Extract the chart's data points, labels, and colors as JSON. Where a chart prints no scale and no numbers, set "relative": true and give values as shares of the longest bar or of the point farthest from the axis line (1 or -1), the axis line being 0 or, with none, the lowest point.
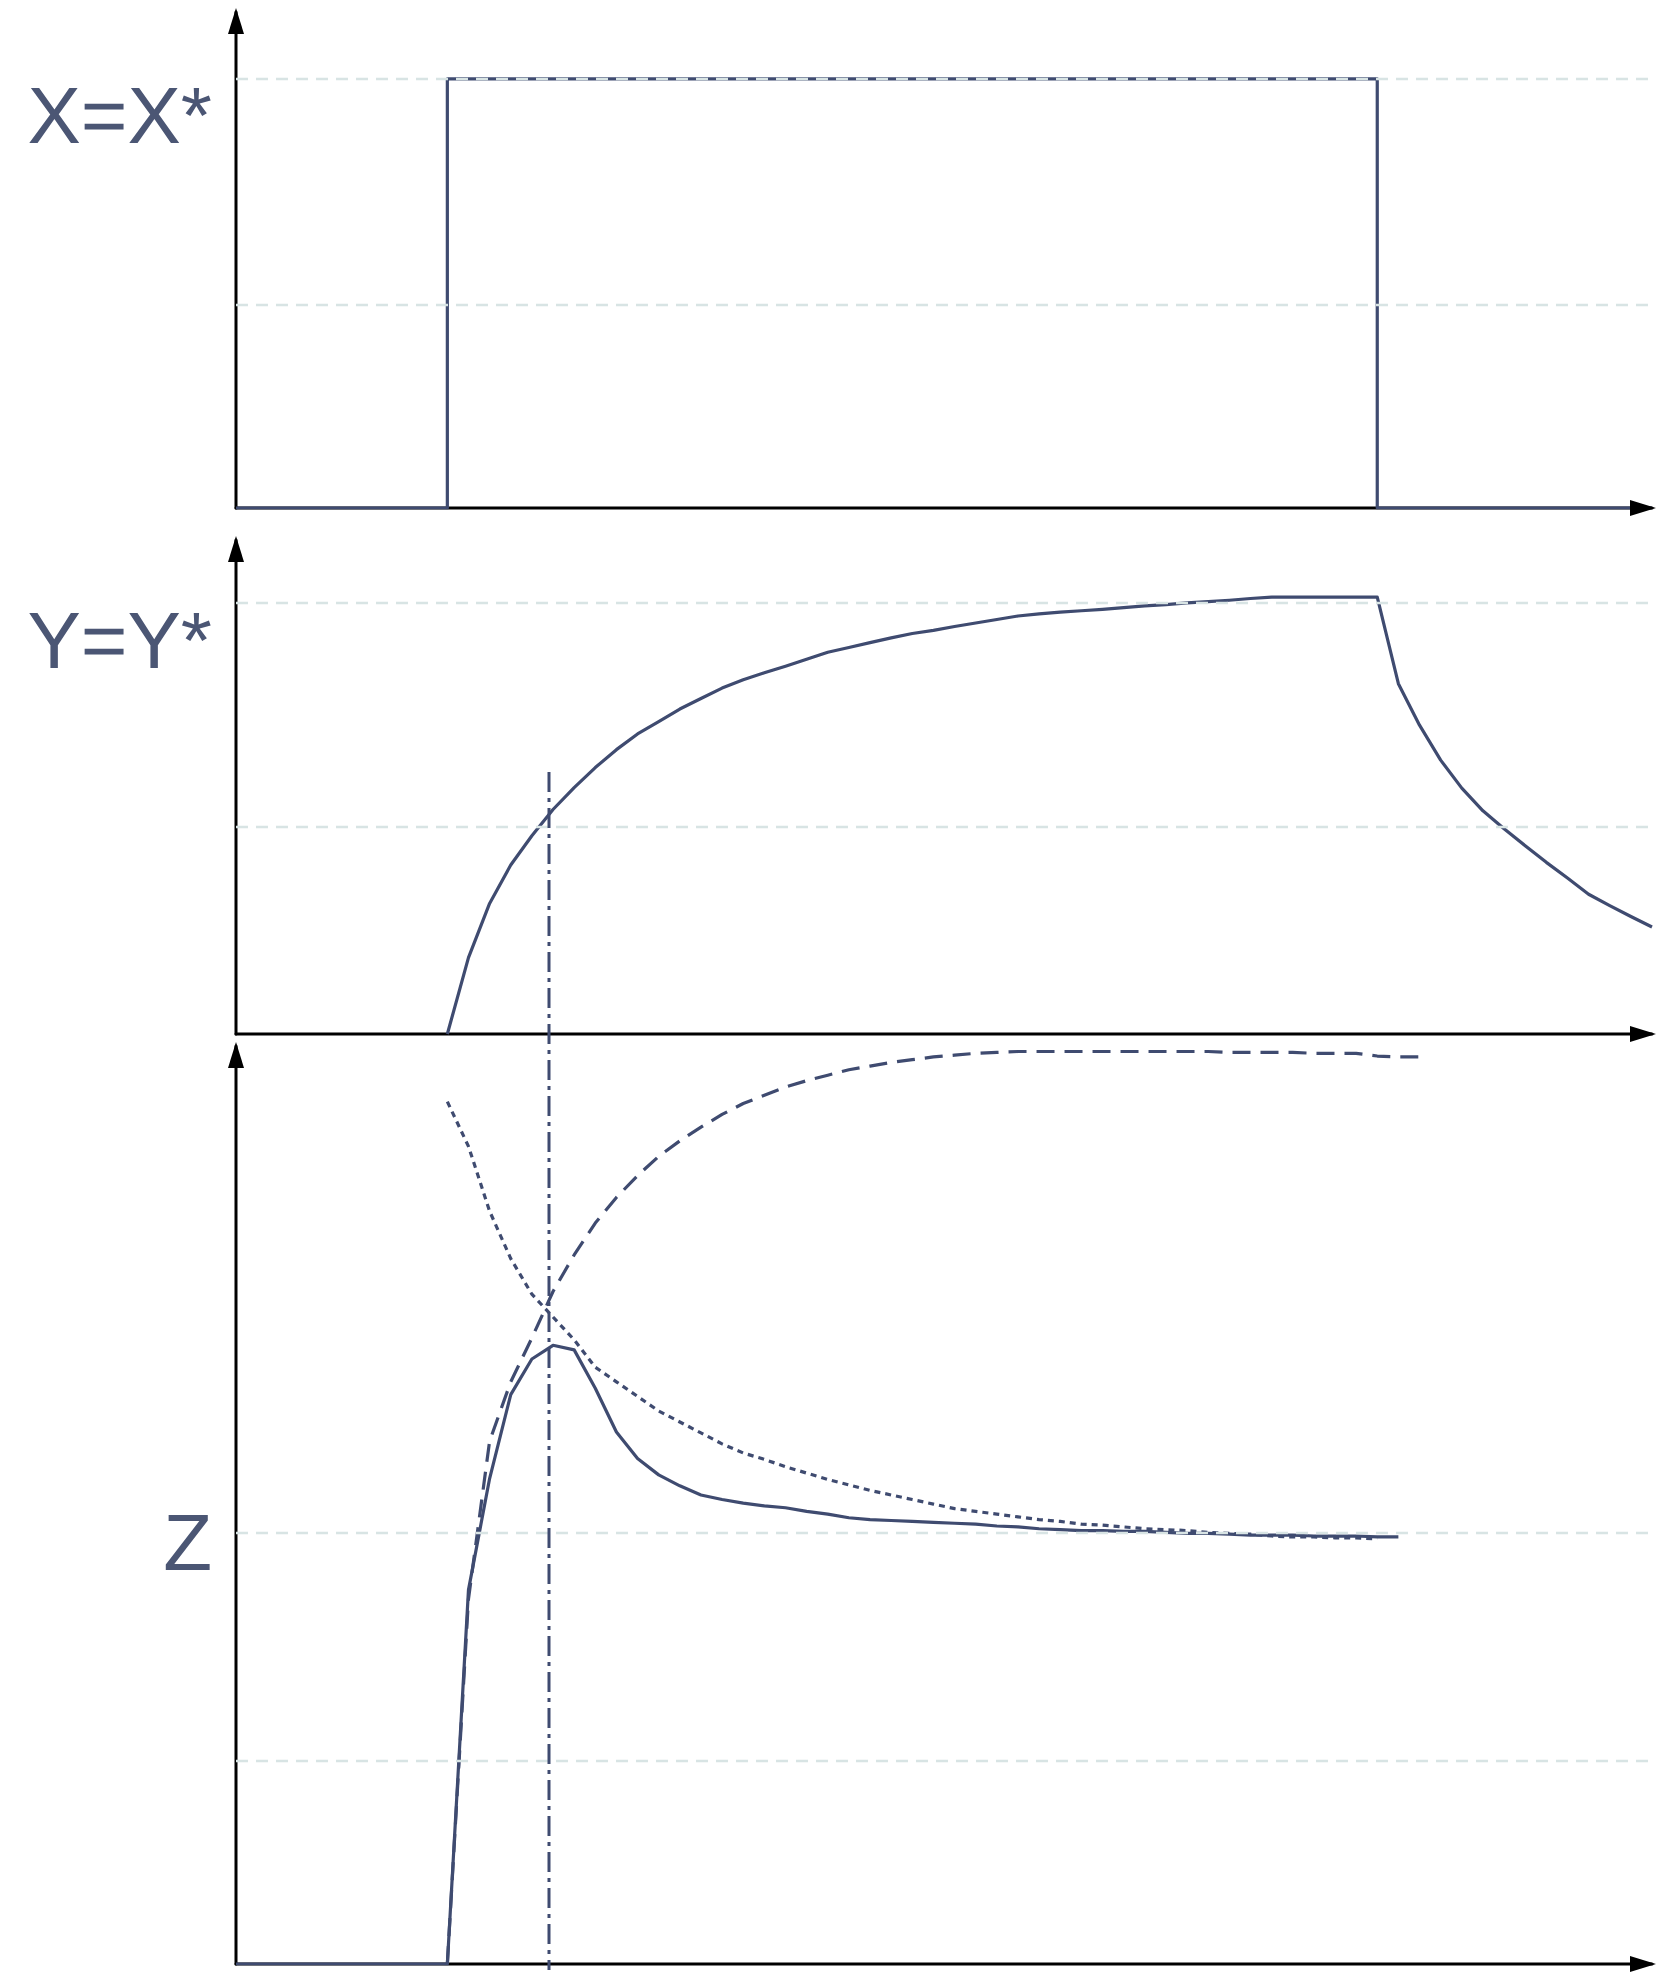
{
  "chart_data": [
    {
      "type": "step",
      "relative": true,
      "marker": "none",
      "categories": [
        null,
        null,
        null,
        null,
        null,
        null,
        null,
        null,
        null,
        null,
        null,
        null,
        null,
        null,
        null,
        null,
        null,
        null,
        null,
        null,
        null,
        null,
        null,
        null,
        null,
        null,
        null,
        null,
        null,
        null,
        null,
        null,
        null,
        null,
        null,
        null,
        null,
        null,
        null,
        null,
        null,
        null,
        null,
        null,
        null,
        null,
        null,
        null,
        null,
        null,
        null,
        null,
        null,
        null,
        null,
        null,
        null,
        null,
        null,
        null,
        null,
        null,
        null,
        null,
        null,
        null,
        null,
        null
      ],
      "series": [
        {
          "color": "#3f4b70",
          "line_style": "solid",
          "values": [
            0,
            0,
            0,
            0,
            0,
            0,
            0,
            0,
            0,
            0,
            1,
            1,
            1,
            1,
            1,
            1,
            1,
            1,
            1,
            1,
            1,
            1,
            1,
            1,
            1,
            1,
            1,
            1,
            1,
            1,
            1,
            1,
            1,
            1,
            1,
            1,
            1,
            1,
            1,
            1,
            1,
            1,
            1,
            1,
            1,
            1,
            1,
            1,
            1,
            1,
            1,
            1,
            1,
            1,
            0,
            0,
            0,
            0,
            0,
            0,
            0,
            0,
            0,
            0,
            0,
            0,
            0,
            0
          ]
        }
      ],
      "ref_lines": [
        {
          "axis": "y",
          "value": 1,
          "label": "X=X*",
          "color": "#d8e4e4",
          "line_style": "dashed"
        },
        {
          "axis": "y",
          "value": 0.475,
          "color": "#d8e4e4",
          "line_style": "dashed"
        }
      ]
    },
    {
      "type": "line",
      "relative": true,
      "marker": "none",
      "categories": [
        null,
        null,
        null,
        null,
        null,
        null,
        null,
        null,
        null,
        null,
        null,
        null,
        null,
        null,
        null,
        null,
        null,
        null,
        null,
        null,
        null,
        null,
        null,
        null,
        null,
        null,
        null,
        null,
        null,
        null,
        null,
        null,
        null,
        null,
        null,
        null,
        null,
        null,
        null,
        null,
        null,
        null,
        null,
        null,
        null,
        null,
        null,
        null,
        null,
        null,
        null,
        null,
        null,
        null,
        null,
        null,
        null,
        null,
        null,
        null,
        null,
        null,
        null,
        null,
        null,
        null,
        null,
        null
      ],
      "series": [
        {
          "color": "#3f4b70",
          "line_style": "solid",
          "values": [
            null,
            null,
            null,
            null,
            null,
            null,
            null,
            null,
            null,
            null,
            0,
            0.175,
            0.299,
            0.387,
            0.454,
            0.514,
            0.564,
            0.61,
            0.651,
            0.687,
            0.715,
            0.744,
            0.768,
            0.792,
            0.811,
            0.827,
            0.842,
            0.858,
            0.874,
            0.885,
            0.896,
            0.907,
            0.917,
            0.924,
            0.933,
            0.941,
            0.949,
            0.957,
            0.962,
            0.966,
            0.969,
            0.972,
            0.976,
            0.98,
            0.983,
            0.987,
            0.99,
            0.993,
            0.997,
            1,
            1,
            1,
            1,
            1,
            1,
            0.802,
            0.707,
            0.627,
            0.563,
            0.511,
            0.47,
            0.431,
            0.393,
            0.357,
            0.32,
            0.294,
            0.269,
            0.245
          ]
        }
      ],
      "ref_lines": [
        {
          "axis": "y",
          "value": 0.99,
          "label": "Y=Y*",
          "color": "#d8e4e4",
          "line_style": "dashed"
        },
        {
          "axis": "y",
          "value": 0.475,
          "color": "#d8e4e4",
          "line_style": "dashed"
        }
      ]
    },
    {
      "type": "line",
      "relative": true,
      "marker": "none",
      "categories": [
        null,
        null,
        null,
        null,
        null,
        null,
        null,
        null,
        null,
        null,
        null,
        null,
        null,
        null,
        null,
        null,
        null,
        null,
        null,
        null,
        null,
        null,
        null,
        null,
        null,
        null,
        null,
        null,
        null,
        null,
        null,
        null,
        null,
        null,
        null,
        null,
        null,
        null,
        null,
        null,
        null,
        null,
        null,
        null,
        null,
        null,
        null,
        null,
        null,
        null,
        null,
        null,
        null,
        null,
        null,
        null,
        null,
        null,
        null,
        null,
        null,
        null,
        null,
        null,
        null,
        null,
        null,
        null
      ],
      "series": [
        {
          "color": "#3f4b70",
          "line_style": "solid",
          "values": [
            0,
            0,
            0,
            0,
            0,
            0,
            0,
            0,
            0,
            0,
            0,
            0.41,
            0.532,
            0.624,
            0.663,
            0.678,
            0.673,
            0.631,
            0.583,
            0.554,
            0.536,
            0.524,
            0.514,
            0.509,
            0.505,
            0.502,
            0.5,
            0.496,
            0.493,
            0.489,
            0.487,
            0.486,
            0.485,
            0.484,
            0.483,
            0.482,
            0.48,
            0.479,
            0.477,
            0.476,
            0.475,
            0.475,
            0.474,
            0.474,
            0.473,
            0.472,
            0.472,
            0.471,
            0.47,
            0.47,
            0.47,
            0.469,
            0.469,
            0.469,
            0.468,
            0.468,
            null,
            null,
            null,
            null,
            null,
            null,
            null,
            null,
            null,
            null,
            null,
            null
          ]
        },
        {
          "color": "#3f4b70",
          "line_style": "dashed",
          "values": [
            null,
            null,
            null,
            null,
            null,
            null,
            null,
            null,
            null,
            null,
            0,
            0.4,
            0.573,
            0.638,
            0.686,
            0.737,
            0.777,
            0.812,
            0.84,
            0.864,
            0.885,
            0.902,
            0.917,
            0.931,
            0.943,
            0.952,
            0.961,
            0.968,
            0.974,
            0.98,
            0.984,
            0.988,
            0.991,
            0.994,
            0.996,
            0.998,
            0.999,
            1,
            1,
            1,
            1,
            1,
            1,
            1,
            1,
            1,
            1,
            0.999,
            0.999,
            0.999,
            0.999,
            0.998,
            0.998,
            0.998,
            0.995,
            0.994,
            0.994,
            null,
            null,
            null,
            null,
            null,
            null,
            null,
            null,
            null,
            null,
            null
          ]
        },
        {
          "color": "#3f4b70",
          "line_style": "dotted",
          "values": [
            null,
            null,
            null,
            null,
            null,
            null,
            null,
            null,
            null,
            null,
            0.945,
            0.896,
            0.825,
            0.773,
            0.734,
            0.709,
            0.684,
            0.654,
            0.638,
            0.622,
            0.606,
            0.594,
            0.582,
            0.57,
            0.56,
            0.553,
            0.545,
            0.538,
            0.531,
            0.525,
            0.519,
            0.514,
            0.509,
            0.504,
            0.499,
            0.496,
            0.493,
            0.49,
            0.487,
            0.485,
            0.482,
            0.481,
            0.479,
            0.477,
            0.476,
            0.475,
            0.473,
            0.472,
            0.471,
            0.469,
            0.468,
            0.468,
            0.467,
            0.467,
            0.466,
            null,
            null,
            null,
            null,
            null,
            null,
            null,
            null,
            null,
            null,
            null,
            null,
            null
          ]
        }
      ],
      "ref_lines": [
        {
          "axis": "y",
          "value": 0.473,
          "label": "Z",
          "color": "#d8e4e4",
          "line_style": "dashed"
        },
        {
          "axis": "y",
          "value": 0.223,
          "color": "#d8e4e4",
          "line_style": "dashed"
        }
      ]
    }
  ]
}
